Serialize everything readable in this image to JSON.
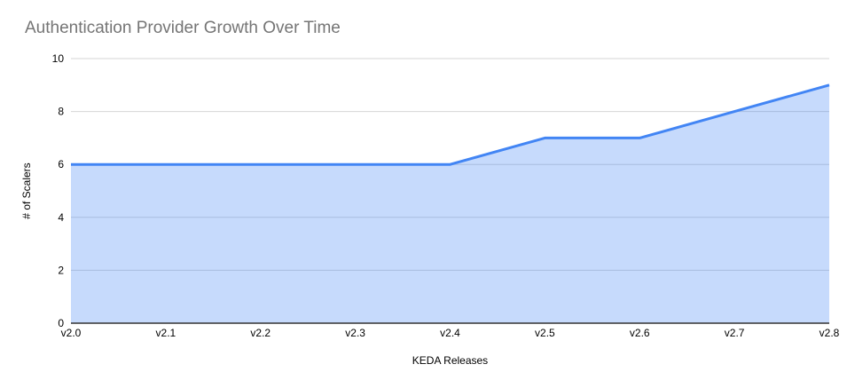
{
  "chart_data": {
    "type": "area",
    "title": "Authentication Provider Growth Over Time",
    "xlabel": "KEDA Releases",
    "ylabel": "# of Scalers",
    "categories": [
      "v2.0",
      "v2.1",
      "v2.2",
      "v2.3",
      "v2.4",
      "v2.5",
      "v2.6",
      "v2.7",
      "v2.8"
    ],
    "series": [
      {
        "name": "# of Scalers",
        "values": [
          6,
          6,
          6,
          6,
          6,
          7,
          7,
          8,
          9
        ]
      }
    ],
    "ylim": [
      0,
      10
    ],
    "yticks": [
      0,
      2,
      4,
      6,
      8,
      10
    ],
    "grid": true,
    "legend": "none",
    "colors": {
      "line": "#4285f4",
      "fill": "#4285f4",
      "fill_opacity": 0.3,
      "gridline": "#d6d6d6",
      "baseline": "#333333",
      "title": "#757575",
      "tick_label": "#000000",
      "background": "#ffffff"
    }
  }
}
